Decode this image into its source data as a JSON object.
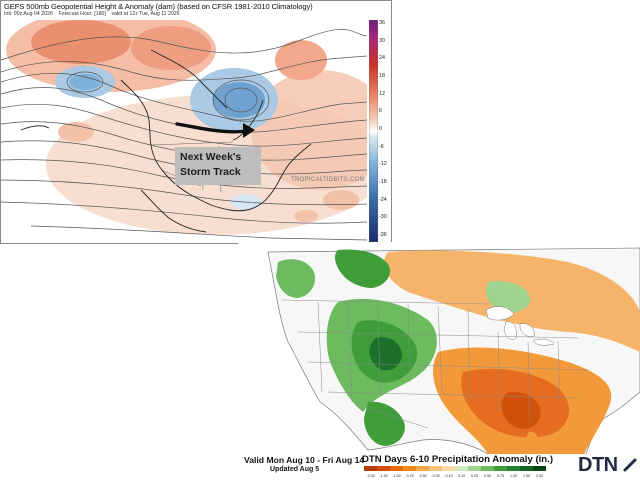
{
  "gefs": {
    "title": "GEFS 500mb Geopotential Height & Anomaly (dam) (based on CFSR 1981-2010 Climatology)",
    "init_label": "Init: 00z Aug 04 2026",
    "forecast_label": "Forecast Hour: [180]",
    "valid_label": "valid at 12z Tue, Aug 11 2026",
    "credit": "TROPICALTIDBITS.COM",
    "storm_track_line1": "Next Week's",
    "storm_track_line2": "Storm Track",
    "colorbar_ticks": [
      "36",
      "30",
      "24",
      "18",
      "12",
      "6",
      "0",
      "-6",
      "-12",
      "-18",
      "-24",
      "-30",
      "-36"
    ],
    "colors": {
      "positive_anomaly": "#f2a386",
      "strong_positive": "#e0664a",
      "negative_anomaly": "#7fb0d8",
      "strong_negative": "#4d86c0",
      "storm_track": "#111111",
      "label_box": "#bdbdbd"
    }
  },
  "dtn": {
    "valid_label": "Valid Mon Aug 10 - Fri Aug 14",
    "updated_label": "Updated Aug 5",
    "title": "DTN Days 6-10 Precipitation Anomaly (in.)",
    "logo": "DTN",
    "legend": [
      "-2.00",
      "-1.50",
      "-1.00",
      "-0.75",
      "-0.50",
      "-0.25",
      "-0.10",
      "0.10",
      "0.25",
      "0.50",
      "0.75",
      "1.00",
      "1.50",
      "2.00"
    ],
    "legend_colors": [
      "#b83a00",
      "#d24e00",
      "#e46a00",
      "#ef8a18",
      "#f6a646",
      "#f9c27a",
      "#fbdba9",
      "#cfe9c2",
      "#9fd38e",
      "#6cbb5f",
      "#3f9e3a",
      "#23822b",
      "#15651f",
      "#0b4716"
    ],
    "colors": {
      "dry": "#f29a3a",
      "very_dry": "#e0601a",
      "wet": "#4aa04a",
      "very_wet": "#1d6f2a",
      "land": "#f7f7f7",
      "water": "#ffffff"
    }
  }
}
